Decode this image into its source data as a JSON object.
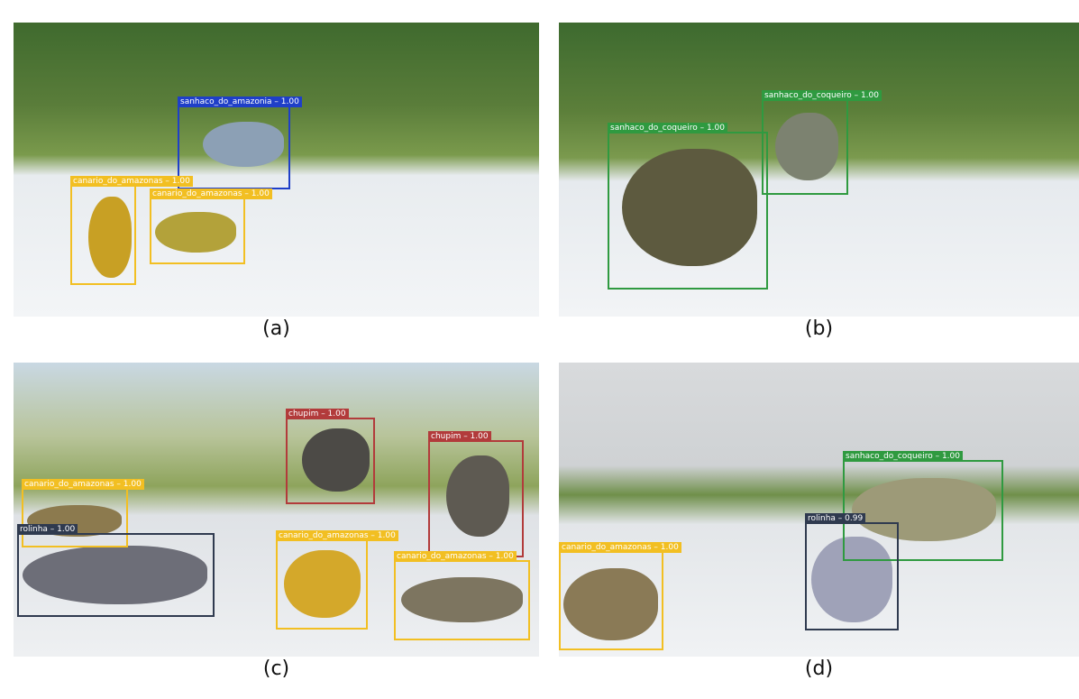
{
  "panels": [
    {
      "caption": "(a)",
      "detections": [
        {
          "label": "sanhaco_do_amazonia – 1.00"
        },
        {
          "label": "canario_do_amazonas – 1.00"
        },
        {
          "label": "canario_do_amazonas – 1.00"
        }
      ]
    },
    {
      "caption": "(b)",
      "detections": [
        {
          "label": "sanhaco_do_coqueiro – 1.00"
        },
        {
          "label": "sanhaco_do_coqueiro – 1.00"
        }
      ]
    },
    {
      "caption": "(c)",
      "detections": [
        {
          "label": "chupim – 1.00"
        },
        {
          "label": "chupim – 1.00"
        },
        {
          "label": "canario_do_amazonas – 1.00"
        },
        {
          "label": "rolinha – 1.00"
        },
        {
          "label": "canario_do_amazonas – 1.00"
        },
        {
          "label": "canario_do_amazonas – 1.00"
        }
      ]
    },
    {
      "caption": "(d)",
      "detections": [
        {
          "label": "sanhaco_do_coqueiro – 1.00"
        },
        {
          "label": "rolinha – 0.99"
        },
        {
          "label": "canario_do_amazonas – 1.00"
        }
      ]
    }
  ]
}
